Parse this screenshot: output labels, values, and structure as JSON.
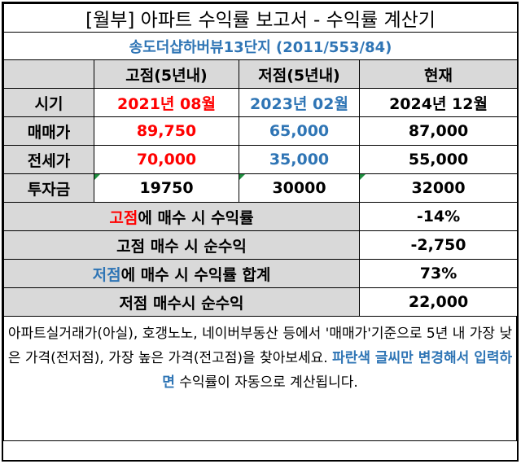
{
  "title": "[월부] 아파트 수익률 보고서 - 수익률 계산기",
  "subtitle": "송도더샵하버뷰13단지 (2011/553/84)",
  "headers": {
    "high": "고점(5년내)",
    "low": "저점(5년내)",
    "current": "현재"
  },
  "rows": {
    "period": {
      "label": "시기",
      "high": "2021년 08월",
      "low": "2023년 02월",
      "current": "2024년 12월"
    },
    "sale": {
      "label": "매매가",
      "high": "89,750",
      "low": "65,000",
      "current": "87,000"
    },
    "jeonse": {
      "label": "전세가",
      "high": "70,000",
      "low": "35,000",
      "current": "55,000"
    },
    "invest": {
      "label": "투자금",
      "high": "19750",
      "low": "30000",
      "current": "32000"
    }
  },
  "summary": {
    "high_return": {
      "label_hl": "고점",
      "label_rest": "에 매수 시 수익률",
      "value": "-14%"
    },
    "high_profit": {
      "label": "고점 매수 시 순수익",
      "value": "-2,750"
    },
    "low_return": {
      "label_hl": "저점",
      "label_rest": "에 매수 시 수익률 합계",
      "value": "73%"
    },
    "low_profit": {
      "label": "저점 매수시 순수익",
      "value": "22,000"
    }
  },
  "note": {
    "part1": "아파트실거래가(아실), 호갱노노, 네이버부동산 등에서 '매매가'기준으로 5년 내 가장 낮은 가격(전저점), 가장 높은 가격(전고점)을 찾아보세요. ",
    "highlight": "파란색 글씨만 변경해서 입력하면",
    "part2": " 수익률이 자동으로 계산됩니다."
  },
  "colors": {
    "red": "#ff0000",
    "blue": "#2f75b5",
    "header_bg": "#d9d9d9",
    "marker_green": "#1e8e3e"
  }
}
